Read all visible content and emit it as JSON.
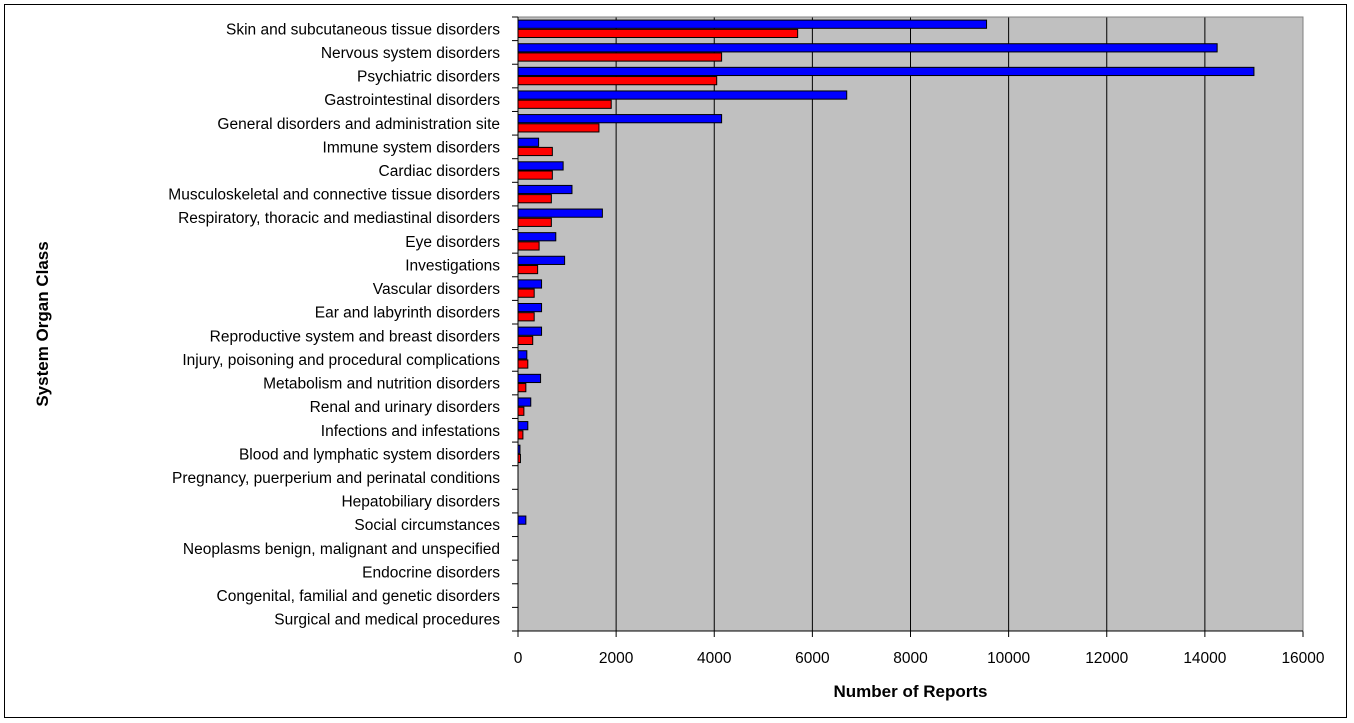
{
  "chart_data": {
    "type": "bar",
    "orientation": "horizontal",
    "title": "",
    "xlabel": "Number of Reports",
    "ylabel": "System Organ Class",
    "xlim": [
      0,
      16000
    ],
    "xticks": [
      0,
      2000,
      4000,
      6000,
      8000,
      10000,
      12000,
      14000,
      16000
    ],
    "grid": "vertical",
    "legend": "none",
    "plot_background": "#c0c0c0",
    "categories": [
      "Skin and subcutaneous tissue disorders",
      "Nervous system disorders",
      "Psychiatric disorders",
      "Gastrointestinal disorders",
      "General disorders and administration site",
      "Immune system disorders",
      "Cardiac disorders",
      "Musculoskeletal and connective tissue disorders",
      "Respiratory, thoracic and mediastinal disorders",
      "Eye disorders",
      "Investigations",
      "Vascular disorders",
      "Ear and labyrinth disorders",
      "Reproductive system and breast disorders",
      "Injury, poisoning and procedural complications",
      "Metabolism and nutrition disorders",
      "Renal and urinary disorders",
      "Infections and infestations",
      "Blood and lymphatic system disorders",
      "Pregnancy, puerperium and perinatal conditions",
      "Hepatobiliary disorders",
      "Social circumstances",
      "Neoplasms benign, malignant and unspecified",
      "Endocrine disorders",
      "Congenital, familial and genetic disorders",
      "Surgical and medical procedures"
    ],
    "series": [
      {
        "color": "#0000ff",
        "values": [
          9550,
          14250,
          15000,
          6700,
          4150,
          420,
          920,
          1100,
          1720,
          770,
          950,
          480,
          480,
          480,
          180,
          460,
          260,
          200,
          40,
          0,
          0,
          160,
          0,
          0,
          0,
          0
        ]
      },
      {
        "color": "#ff0000",
        "values": [
          5700,
          4150,
          4050,
          1900,
          1650,
          700,
          700,
          680,
          680,
          430,
          400,
          330,
          330,
          300,
          200,
          160,
          120,
          100,
          50,
          0,
          0,
          0,
          0,
          0,
          0,
          0
        ]
      }
    ]
  }
}
